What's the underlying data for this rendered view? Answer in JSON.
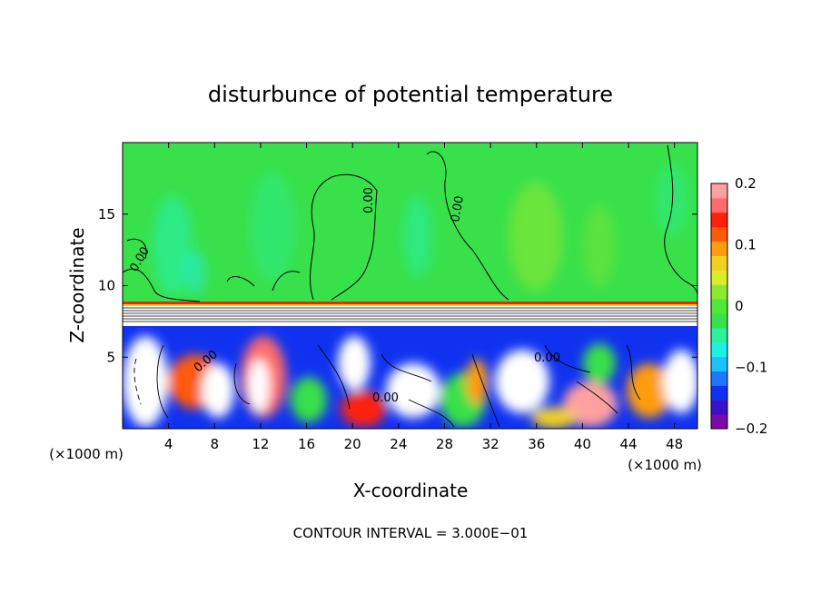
{
  "chart_data": {
    "type": "heatmap",
    "title": "disturbunce of potential temperature",
    "xlabel": "X-coordinate",
    "ylabel": "Z-coordinate",
    "x_unit": "(×1000 m)",
    "z_unit": "(×1000 m)",
    "xlim": [
      0,
      50
    ],
    "ylim": [
      0,
      20
    ],
    "x_ticks": [
      "4",
      "8",
      "12",
      "16",
      "20",
      "24",
      "28",
      "32",
      "36",
      "40",
      "44",
      "48"
    ],
    "y_ticks": [
      "5",
      "10",
      "15"
    ],
    "colorbar": {
      "range": [
        -0.2,
        0.2
      ],
      "tick_labels": [
        "0.2",
        "0.1",
        "0",
        "−0.1",
        "−0.2"
      ],
      "colors": [
        "#7d0aa8",
        "#3a10c8",
        "#1032f0",
        "#1e78ff",
        "#1cc0ff",
        "#1ef0e6",
        "#2af0a0",
        "#38e04a",
        "#4ee838",
        "#8ce830",
        "#d8ee2a",
        "#f2d020",
        "#ff9c10",
        "#ff5a0a",
        "#ff200a",
        "#ff6a6a",
        "#ffa0a0"
      ]
    },
    "contour_labels": [
      "0.00",
      "0.00",
      "0.00",
      "0.00",
      "0.00",
      "0.00"
    ],
    "footer": "CONTOUR INTERVAL = 3.000E−01"
  }
}
